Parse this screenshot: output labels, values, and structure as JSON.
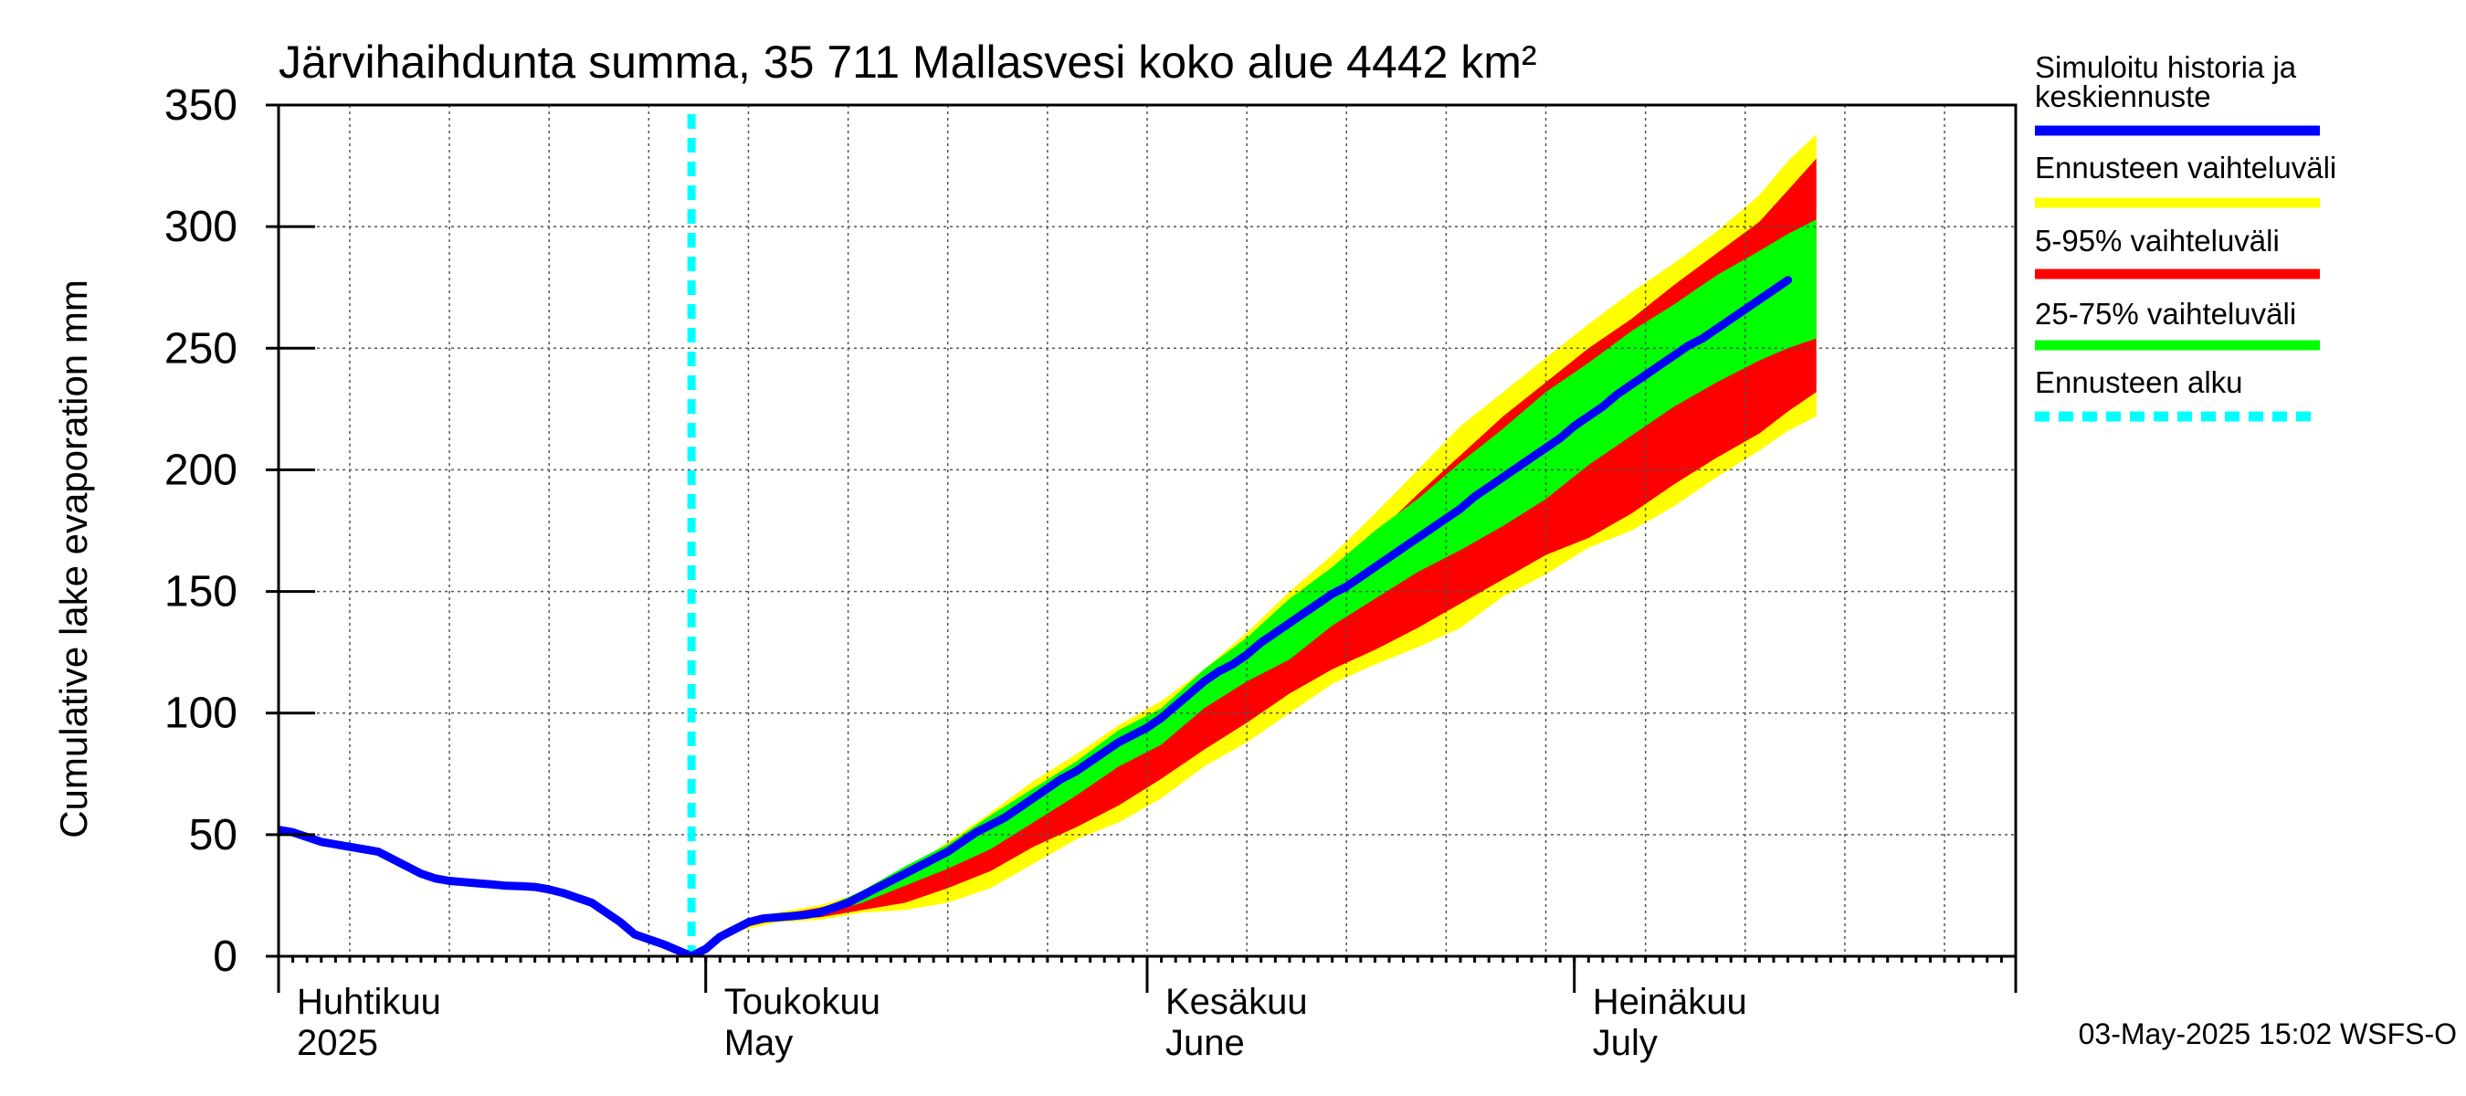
{
  "chart_data": {
    "type": "area",
    "title": "Järvihaihdunta summa, 35 711 Mallasvesi koko alue 4442 km²",
    "ylabel": "Cumulative lake evaporation   mm",
    "xlabel": "",
    "ylim": [
      0,
      350
    ],
    "xlim": [
      "2025-04-01",
      "2025-08-01"
    ],
    "yticks": [
      0,
      50,
      100,
      150,
      200,
      250,
      300,
      350
    ],
    "month_labels": [
      {
        "date": "2025-04-01",
        "line1": "Huhtikuu",
        "line2": "2025"
      },
      {
        "date": "2025-05-01",
        "line1": "Toukokuu",
        "line2": "May"
      },
      {
        "date": "2025-06-01",
        "line1": "Kesäkuu",
        "line2": "June"
      },
      {
        "date": "2025-07-01",
        "line1": "Heinäkuu",
        "line2": "July"
      }
    ],
    "grid": true,
    "legend_position": "right",
    "forecast_start": "2025-04-30",
    "series": [
      {
        "name": "Simuloitu historia ja keskiennuste",
        "type": "line",
        "color": "#0000ff",
        "points": [
          [
            "2025-03-31",
            52
          ],
          [
            "2025-04-01",
            52
          ],
          [
            "2025-04-02",
            51
          ],
          [
            "2025-04-03",
            49
          ],
          [
            "2025-04-04",
            47
          ],
          [
            "2025-04-05",
            46
          ],
          [
            "2025-04-06",
            45
          ],
          [
            "2025-04-07",
            44
          ],
          [
            "2025-04-08",
            43
          ],
          [
            "2025-04-09",
            40
          ],
          [
            "2025-04-10",
            37
          ],
          [
            "2025-04-11",
            34
          ],
          [
            "2025-04-12",
            32
          ],
          [
            "2025-04-13",
            31
          ],
          [
            "2025-04-14",
            30.5
          ],
          [
            "2025-04-15",
            30
          ],
          [
            "2025-04-16",
            29.5
          ],
          [
            "2025-04-17",
            29
          ],
          [
            "2025-04-18",
            28.8
          ],
          [
            "2025-04-19",
            28.5
          ],
          [
            "2025-04-20",
            27.5
          ],
          [
            "2025-04-21",
            26
          ],
          [
            "2025-04-22",
            24
          ],
          [
            "2025-04-23",
            22
          ],
          [
            "2025-04-24",
            18
          ],
          [
            "2025-04-25",
            14
          ],
          [
            "2025-04-26",
            9
          ],
          [
            "2025-04-27",
            7
          ],
          [
            "2025-04-28",
            5
          ],
          [
            "2025-04-29",
            2.5
          ],
          [
            "2025-04-30",
            0
          ],
          [
            "2025-05-01",
            3
          ],
          [
            "2025-05-02",
            8
          ],
          [
            "2025-05-03",
            11
          ],
          [
            "2025-05-04",
            14
          ],
          [
            "2025-05-05",
            15.5
          ],
          [
            "2025-05-06",
            16
          ],
          [
            "2025-05-07",
            16.5
          ],
          [
            "2025-05-08",
            17
          ],
          [
            "2025-05-09",
            18
          ],
          [
            "2025-05-10",
            20
          ],
          [
            "2025-05-11",
            22
          ],
          [
            "2025-05-12",
            25
          ],
          [
            "2025-05-13",
            28
          ],
          [
            "2025-05-14",
            31
          ],
          [
            "2025-05-15",
            34
          ],
          [
            "2025-05-16",
            37
          ],
          [
            "2025-05-17",
            40
          ],
          [
            "2025-05-18",
            43
          ],
          [
            "2025-05-19",
            47
          ],
          [
            "2025-05-20",
            51
          ],
          [
            "2025-05-21",
            54
          ],
          [
            "2025-05-22",
            57
          ],
          [
            "2025-05-23",
            61
          ],
          [
            "2025-05-24",
            65
          ],
          [
            "2025-05-25",
            69
          ],
          [
            "2025-05-26",
            73
          ],
          [
            "2025-05-27",
            76
          ],
          [
            "2025-05-28",
            80
          ],
          [
            "2025-05-29",
            84
          ],
          [
            "2025-05-30",
            88
          ],
          [
            "2025-05-31",
            91
          ],
          [
            "2025-06-01",
            94
          ],
          [
            "2025-06-02",
            98
          ],
          [
            "2025-06-03",
            103
          ],
          [
            "2025-06-04",
            108
          ],
          [
            "2025-06-05",
            113
          ],
          [
            "2025-06-06",
            117
          ],
          [
            "2025-06-07",
            120
          ],
          [
            "2025-06-08",
            124
          ],
          [
            "2025-06-09",
            129
          ],
          [
            "2025-06-10",
            133
          ],
          [
            "2025-06-11",
            137
          ],
          [
            "2025-06-12",
            141
          ],
          [
            "2025-06-13",
            145
          ],
          [
            "2025-06-14",
            149
          ],
          [
            "2025-06-15",
            152
          ],
          [
            "2025-06-16",
            156
          ],
          [
            "2025-06-17",
            160
          ],
          [
            "2025-06-18",
            164
          ],
          [
            "2025-06-19",
            168
          ],
          [
            "2025-06-20",
            172
          ],
          [
            "2025-06-21",
            176
          ],
          [
            "2025-06-22",
            180
          ],
          [
            "2025-06-23",
            184
          ],
          [
            "2025-06-24",
            189
          ],
          [
            "2025-06-25",
            193
          ],
          [
            "2025-06-26",
            197
          ],
          [
            "2025-06-27",
            201
          ],
          [
            "2025-06-28",
            205
          ],
          [
            "2025-06-29",
            209
          ],
          [
            "2025-06-30",
            213
          ],
          [
            "2025-07-01",
            218
          ],
          [
            "2025-07-02",
            222
          ],
          [
            "2025-07-03",
            226
          ],
          [
            "2025-07-04",
            231
          ],
          [
            "2025-07-05",
            235
          ],
          [
            "2025-07-06",
            239
          ],
          [
            "2025-07-07",
            243
          ],
          [
            "2025-07-08",
            247
          ],
          [
            "2025-07-09",
            251
          ],
          [
            "2025-07-10",
            254
          ],
          [
            "2025-07-11",
            258
          ],
          [
            "2025-07-12",
            262
          ],
          [
            "2025-07-13",
            266
          ],
          [
            "2025-07-14",
            270
          ],
          [
            "2025-07-15",
            274
          ],
          [
            "2025-07-16",
            278
          ]
        ]
      },
      {
        "name": "Ennusteen vaihteluväli",
        "type": "band",
        "color": "#ffff00",
        "points": [
          [
            "2025-04-30",
            0,
            0
          ],
          [
            "2025-05-03",
            10,
            13
          ],
          [
            "2025-05-06",
            14,
            18
          ],
          [
            "2025-05-09",
            15,
            21
          ],
          [
            "2025-05-12",
            18,
            26
          ],
          [
            "2025-05-15",
            19,
            35
          ],
          [
            "2025-05-18",
            22,
            47
          ],
          [
            "2025-05-21",
            28,
            59
          ],
          [
            "2025-05-24",
            38,
            72
          ],
          [
            "2025-05-27",
            48,
            83
          ],
          [
            "2025-05-30",
            55,
            95
          ],
          [
            "2025-06-02",
            65,
            105
          ],
          [
            "2025-06-05",
            78,
            118
          ],
          [
            "2025-06-08",
            88,
            133
          ],
          [
            "2025-06-11",
            100,
            150
          ],
          [
            "2025-06-14",
            112,
            165
          ],
          [
            "2025-06-17",
            120,
            182
          ],
          [
            "2025-06-20",
            127,
            200
          ],
          [
            "2025-06-23",
            135,
            218
          ],
          [
            "2025-06-26",
            148,
            232
          ],
          [
            "2025-06-29",
            157,
            246
          ],
          [
            "2025-07-02",
            168,
            260
          ],
          [
            "2025-07-05",
            175,
            273
          ],
          [
            "2025-07-08",
            185,
            285
          ],
          [
            "2025-07-11",
            197,
            298
          ],
          [
            "2025-07-14",
            208,
            313
          ],
          [
            "2025-07-16",
            216,
            327
          ],
          [
            "2025-07-18",
            222,
            338
          ]
        ]
      },
      {
        "name": "5-95% vaihteluväli",
        "type": "band",
        "color": "#ff0000",
        "points": [
          [
            "2025-04-30",
            0,
            0
          ],
          [
            "2025-05-03",
            11,
            12
          ],
          [
            "2025-05-06",
            15,
            17
          ],
          [
            "2025-05-09",
            16,
            20
          ],
          [
            "2025-05-12",
            19,
            24
          ],
          [
            "2025-05-15",
            22,
            32
          ],
          [
            "2025-05-18",
            28,
            43
          ],
          [
            "2025-05-21",
            35,
            54
          ],
          [
            "2025-05-24",
            45,
            67
          ],
          [
            "2025-05-27",
            53,
            78
          ],
          [
            "2025-05-30",
            62,
            89
          ],
          [
            "2025-06-02",
            73,
            99
          ],
          [
            "2025-06-05",
            85,
            112
          ],
          [
            "2025-06-08",
            96,
            126
          ],
          [
            "2025-06-11",
            108,
            142
          ],
          [
            "2025-06-14",
            118,
            157
          ],
          [
            "2025-06-17",
            126,
            173
          ],
          [
            "2025-06-20",
            135,
            190
          ],
          [
            "2025-06-23",
            145,
            206
          ],
          [
            "2025-06-26",
            155,
            222
          ],
          [
            "2025-06-29",
            165,
            236
          ],
          [
            "2025-07-02",
            172,
            250
          ],
          [
            "2025-07-05",
            182,
            262
          ],
          [
            "2025-07-08",
            194,
            276
          ],
          [
            "2025-07-11",
            205,
            289
          ],
          [
            "2025-07-14",
            215,
            302
          ],
          [
            "2025-07-16",
            224,
            315
          ],
          [
            "2025-07-18",
            232,
            328
          ]
        ]
      },
      {
        "name": "25-75% vaihteluväli",
        "type": "band",
        "color": "#00ff00",
        "points": [
          [
            "2025-04-30",
            0,
            0
          ],
          [
            "2025-05-03",
            11,
            11.5
          ],
          [
            "2025-05-06",
            15.5,
            16.5
          ],
          [
            "2025-05-09",
            17,
            19
          ],
          [
            "2025-05-12",
            22,
            27
          ],
          [
            "2025-05-15",
            29,
            37
          ],
          [
            "2025-05-18",
            36,
            46
          ],
          [
            "2025-05-21",
            44,
            58
          ],
          [
            "2025-05-24",
            55,
            69
          ],
          [
            "2025-05-27",
            66,
            80
          ],
          [
            "2025-05-30",
            78,
            93
          ],
          [
            "2025-06-02",
            87,
            102
          ],
          [
            "2025-06-05",
            102,
            118
          ],
          [
            "2025-06-08",
            113,
            131
          ],
          [
            "2025-06-11",
            122,
            147
          ],
          [
            "2025-06-14",
            136,
            160
          ],
          [
            "2025-06-17",
            147,
            175
          ],
          [
            "2025-06-20",
            158,
            188
          ],
          [
            "2025-06-23",
            167,
            203
          ],
          [
            "2025-06-26",
            177,
            217
          ],
          [
            "2025-06-29",
            188,
            232
          ],
          [
            "2025-07-02",
            202,
            244
          ],
          [
            "2025-07-05",
            214,
            257
          ],
          [
            "2025-07-08",
            226,
            268
          ],
          [
            "2025-07-11",
            236,
            280
          ],
          [
            "2025-07-14",
            245,
            290
          ],
          [
            "2025-07-16",
            250,
            297
          ],
          [
            "2025-07-18",
            254,
            303
          ]
        ]
      },
      {
        "name": "Ennusteen alku",
        "type": "vline",
        "color": "#00ffff",
        "x": "2025-04-30"
      }
    ],
    "footer": "03-May-2025 15:02 WSFS-O"
  }
}
